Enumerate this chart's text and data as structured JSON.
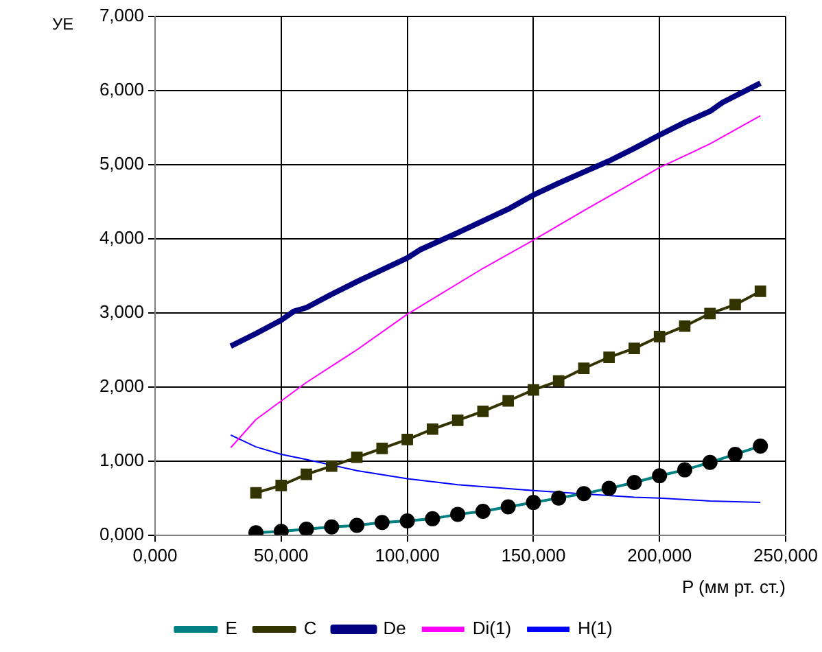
{
  "chart_data": {
    "type": "line",
    "xlabel": "P (мм рт. ст.)",
    "ylabel": "УЕ",
    "xlim": [
      0,
      250
    ],
    "xticks": [
      {
        "value": 0,
        "label": "0,000"
      },
      {
        "value": 50,
        "label": "50,000"
      },
      {
        "value": 100,
        "label": "100,000"
      },
      {
        "value": 150,
        "label": "150,000"
      },
      {
        "value": 200,
        "label": "200,000"
      },
      {
        "value": 250,
        "label": "250,000"
      }
    ],
    "ylim": [
      0,
      7
    ],
    "yticks": [
      {
        "value": 0,
        "label": "0,000"
      },
      {
        "value": 1,
        "label": "1,000"
      },
      {
        "value": 2,
        "label": "2,000"
      },
      {
        "value": 3,
        "label": "3,000"
      },
      {
        "value": 4,
        "label": "4,000"
      },
      {
        "value": 5,
        "label": "5,000"
      },
      {
        "value": 6,
        "label": "6,000"
      },
      {
        "value": 7,
        "label": "7,000"
      }
    ],
    "grid": true,
    "legend": "bottom",
    "series": [
      {
        "name": "E",
        "color": "#008080",
        "marker": "circle",
        "x": [
          40,
          50,
          60,
          70,
          80,
          90,
          100,
          110,
          120,
          130,
          140,
          150,
          160,
          170,
          180,
          190,
          200,
          210,
          220,
          230,
          240
        ],
        "values": [
          0.03,
          0.05,
          0.08,
          0.11,
          0.13,
          0.17,
          0.19,
          0.22,
          0.28,
          0.32,
          0.38,
          0.44,
          0.5,
          0.56,
          0.63,
          0.71,
          0.8,
          0.88,
          0.98,
          1.09,
          1.2
        ]
      },
      {
        "name": "C",
        "color": "#333300",
        "marker": "square",
        "x": [
          40,
          50,
          60,
          70,
          80,
          90,
          100,
          110,
          120,
          130,
          140,
          150,
          160,
          170,
          180,
          190,
          200,
          210,
          220,
          230,
          240
        ],
        "values": [
          0.57,
          0.67,
          0.82,
          0.93,
          1.05,
          1.17,
          1.29,
          1.43,
          1.55,
          1.67,
          1.81,
          1.96,
          2.08,
          2.25,
          2.4,
          2.52,
          2.68,
          2.82,
          2.99,
          3.11,
          3.29
        ]
      },
      {
        "name": "De",
        "color": "#000080",
        "marker": "none",
        "x": [
          30,
          40,
          50,
          55,
          60,
          70,
          80,
          90,
          100,
          105,
          120,
          140,
          150,
          160,
          170,
          180,
          190,
          200,
          210,
          220,
          225,
          240
        ],
        "values": [
          2.55,
          2.72,
          2.9,
          3.02,
          3.07,
          3.25,
          3.42,
          3.58,
          3.74,
          3.85,
          4.08,
          4.4,
          4.59,
          4.75,
          4.9,
          5.05,
          5.22,
          5.4,
          5.57,
          5.72,
          5.84,
          6.1
        ]
      },
      {
        "name": "Di(1)",
        "color": "#ff00ff",
        "marker": "none",
        "x": [
          30,
          40,
          50,
          60,
          80,
          100,
          130,
          150,
          170,
          200,
          220,
          240
        ],
        "values": [
          1.18,
          1.56,
          1.81,
          2.06,
          2.5,
          2.98,
          3.6,
          3.98,
          4.38,
          4.96,
          5.28,
          5.66
        ]
      },
      {
        "name": "H(1)",
        "color": "#0000ff",
        "marker": "none",
        "x": [
          30,
          40,
          50,
          60,
          80,
          100,
          120,
          150,
          190,
          200,
          220,
          240
        ],
        "values": [
          1.35,
          1.19,
          1.09,
          1.02,
          0.87,
          0.76,
          0.68,
          0.6,
          0.51,
          0.5,
          0.46,
          0.44
        ]
      }
    ]
  }
}
